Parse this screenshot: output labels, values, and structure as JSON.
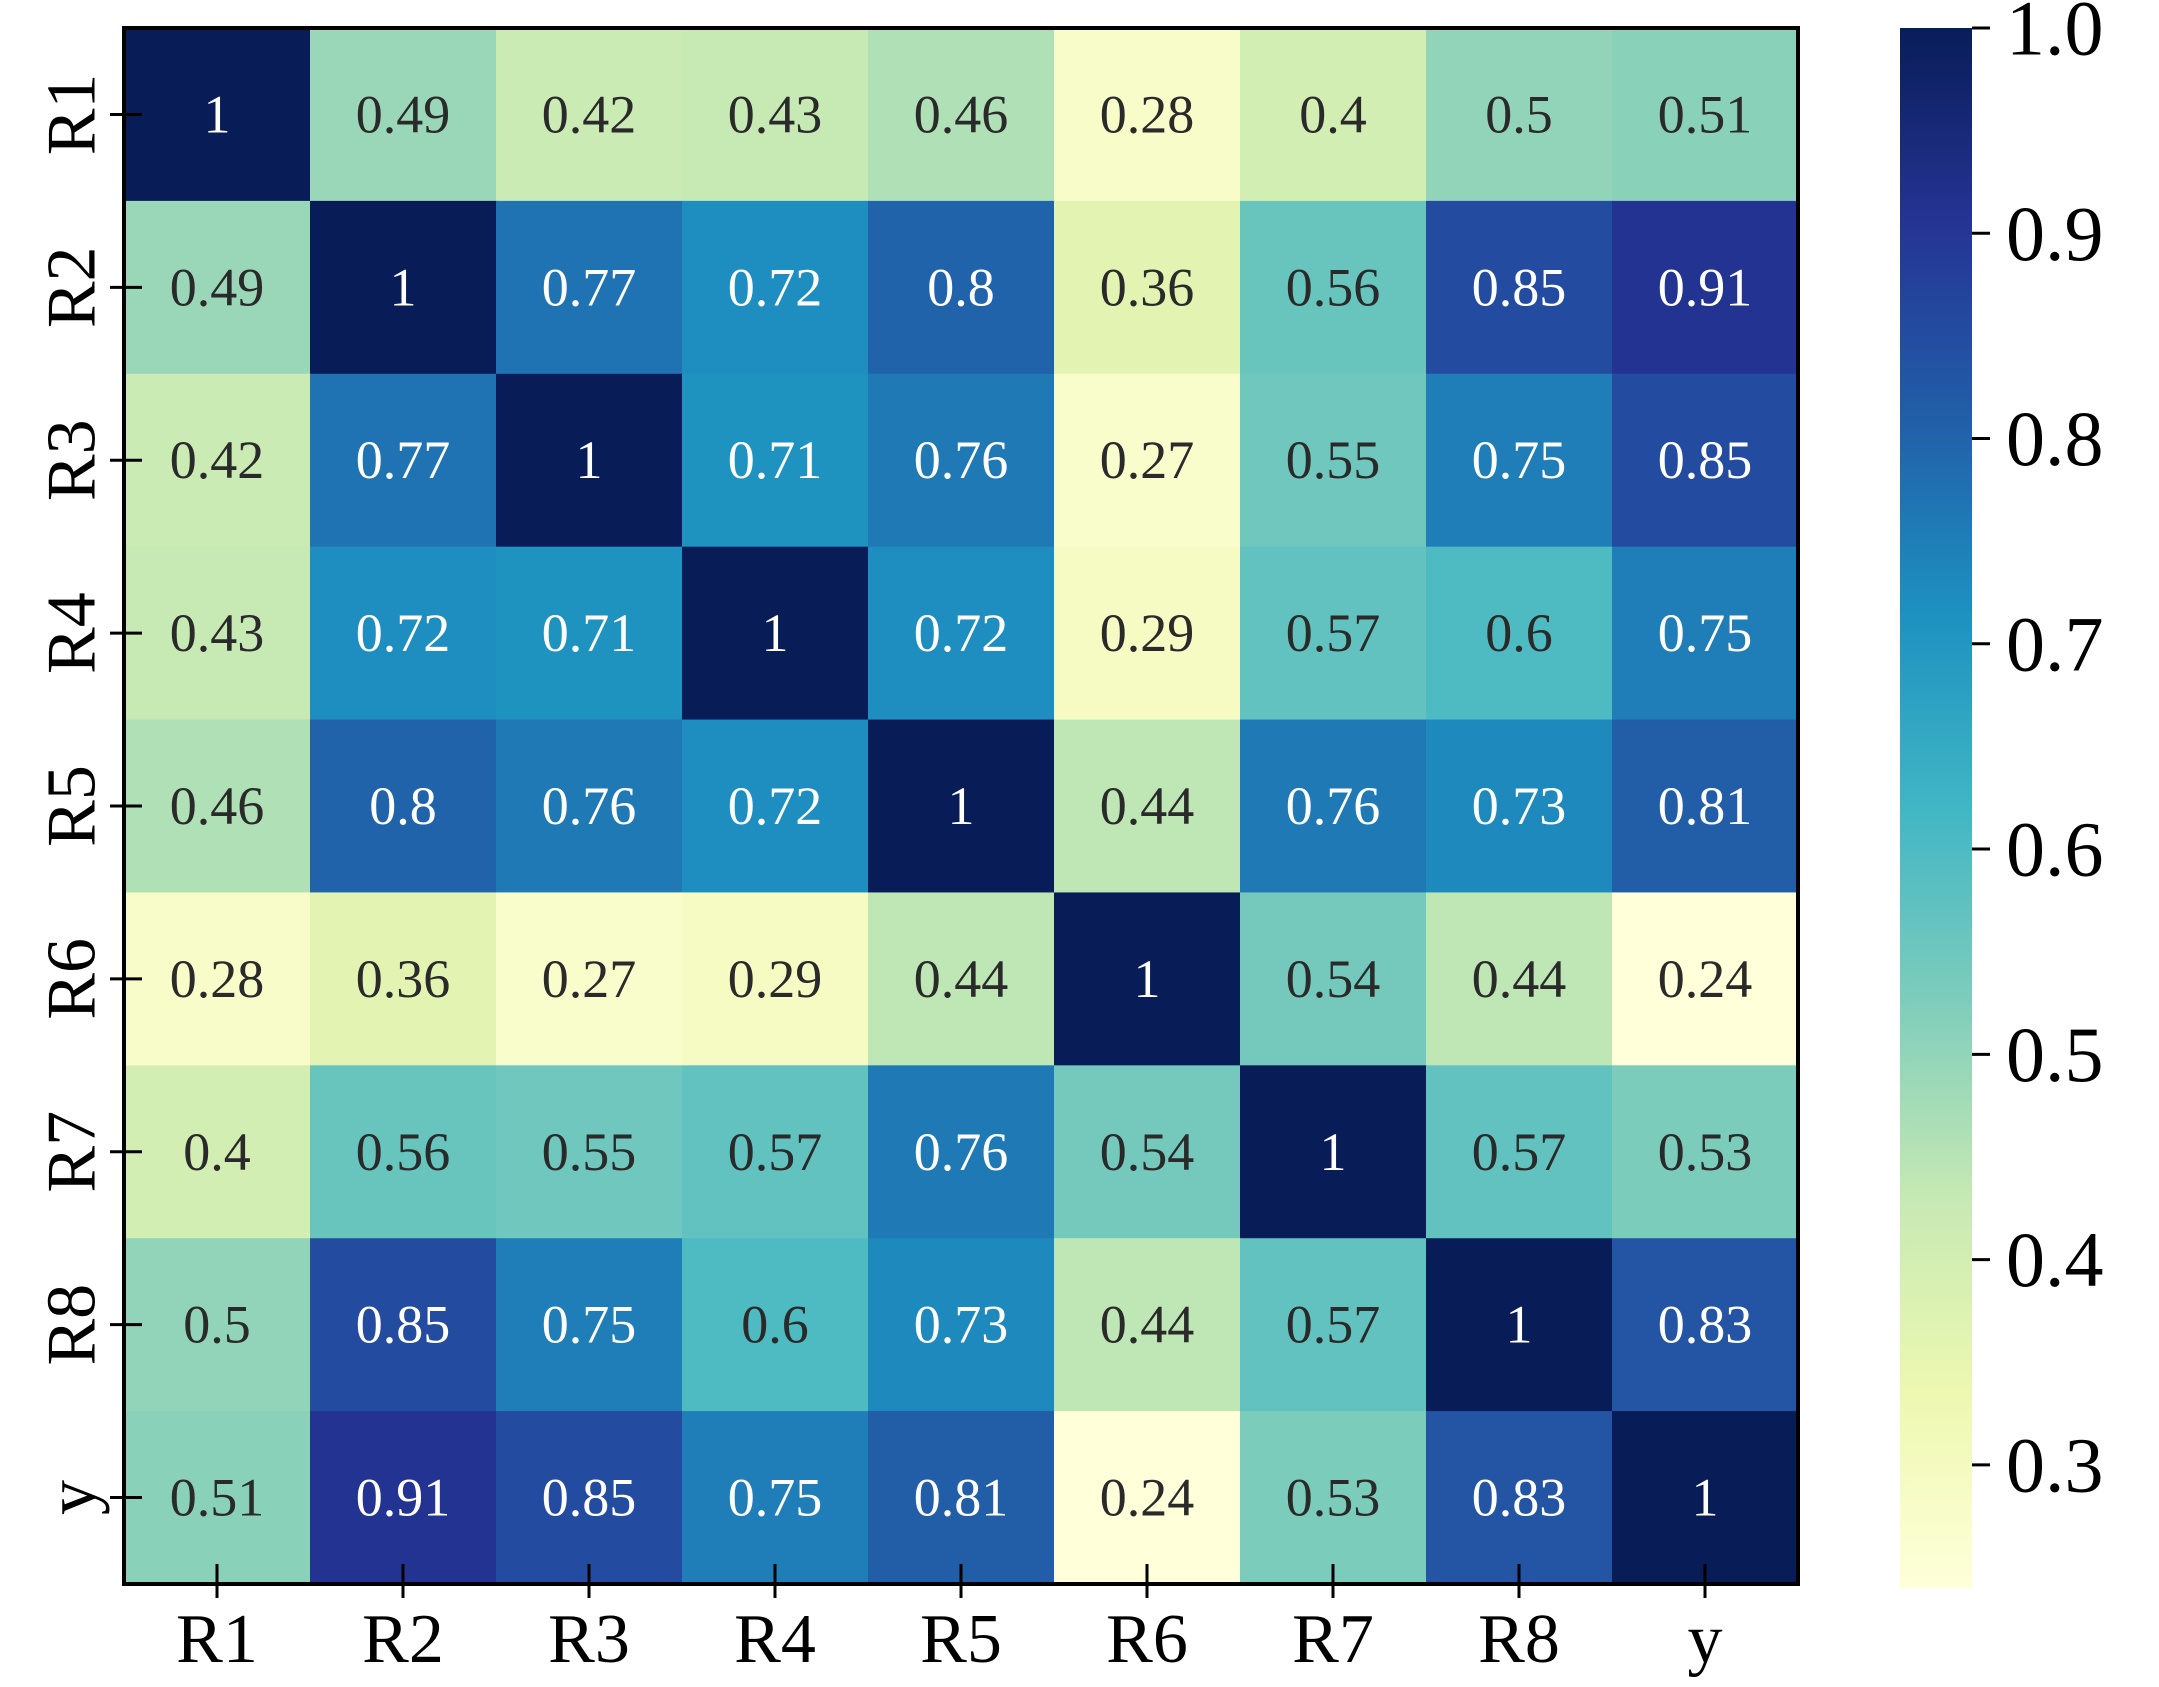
{
  "chart_data": {
    "type": "heatmap",
    "title": "",
    "xlabel": "",
    "ylabel": "",
    "row_labels": [
      "R1",
      "R2",
      "R3",
      "R4",
      "R5",
      "R6",
      "R7",
      "R8",
      "y"
    ],
    "col_labels": [
      "R1",
      "R2",
      "R3",
      "R4",
      "R5",
      "R6",
      "R7",
      "R8",
      "y"
    ],
    "values": [
      [
        1,
        0.49,
        0.42,
        0.43,
        0.46,
        0.28,
        0.4,
        0.5,
        0.51
      ],
      [
        0.49,
        1,
        0.77,
        0.72,
        0.8,
        0.36,
        0.56,
        0.85,
        0.91
      ],
      [
        0.42,
        0.77,
        1,
        0.71,
        0.76,
        0.27,
        0.55,
        0.75,
        0.85
      ],
      [
        0.43,
        0.72,
        0.71,
        1,
        0.72,
        0.29,
        0.57,
        0.6,
        0.75
      ],
      [
        0.46,
        0.8,
        0.76,
        0.72,
        1,
        0.44,
        0.76,
        0.73,
        0.81
      ],
      [
        0.28,
        0.36,
        0.27,
        0.29,
        0.44,
        1,
        0.54,
        0.44,
        0.24
      ],
      [
        0.4,
        0.56,
        0.55,
        0.57,
        0.76,
        0.54,
        1,
        0.57,
        0.53
      ],
      [
        0.5,
        0.85,
        0.75,
        0.6,
        0.73,
        0.44,
        0.57,
        1,
        0.83
      ],
      [
        0.51,
        0.91,
        0.85,
        0.75,
        0.81,
        0.24,
        0.53,
        0.83,
        1
      ]
    ],
    "colormap": "YlGnBu",
    "colorbar": {
      "min": 0.24,
      "max": 1.0,
      "ticks": [
        0.3,
        0.4,
        0.5,
        0.6,
        0.7,
        0.8,
        0.9,
        1.0
      ],
      "tick_labels": [
        "0.3",
        "0.4",
        "0.5",
        "0.6",
        "0.7",
        "0.8",
        "0.9",
        "1.0"
      ]
    },
    "annotate_cells": true,
    "legend": "colorbar-right"
  }
}
